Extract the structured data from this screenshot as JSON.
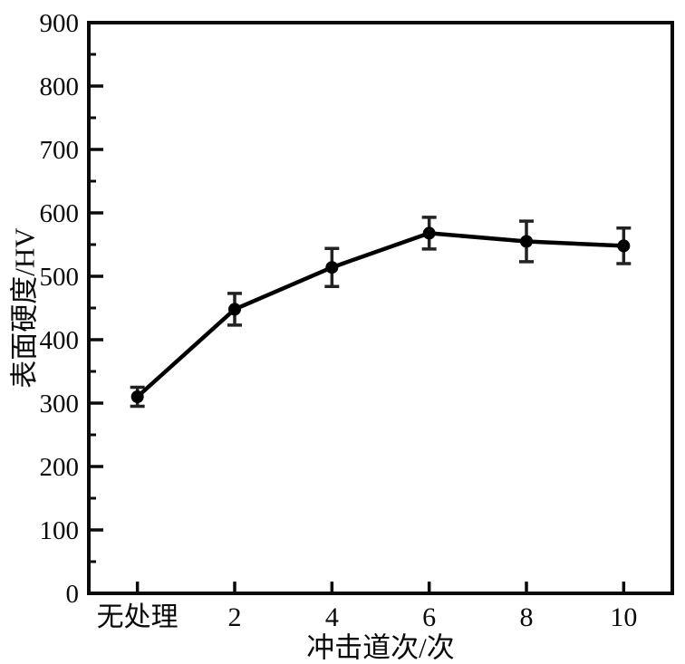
{
  "chart_data": {
    "type": "line",
    "categories": [
      "无处理",
      "2",
      "4",
      "6",
      "8",
      "10"
    ],
    "series": [
      {
        "name": "表面硬度",
        "values": [
          310,
          448,
          514,
          568,
          555,
          548
        ],
        "errors": [
          15,
          25,
          30,
          25,
          32,
          28
        ],
        "color": "#000000",
        "marker": "circle"
      }
    ],
    "title": "",
    "xlabel": "冲击道次/次",
    "ylabel": "表面硬度/HV",
    "ylim": [
      0,
      900
    ],
    "ytick_step": 100,
    "yminor_step": 50,
    "grid": false,
    "legend": "none",
    "axis_color": "#0a0a0a",
    "errorbar_color": "#222222",
    "background": "#ffffff"
  }
}
